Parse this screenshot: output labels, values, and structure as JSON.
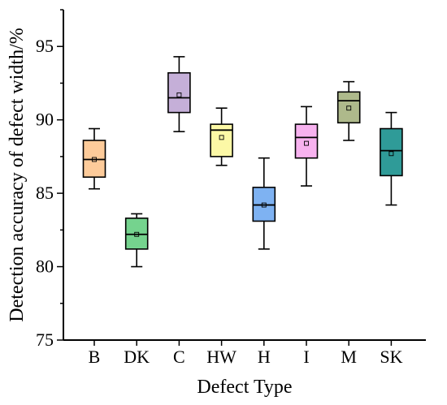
{
  "chart_data": {
    "type": "box",
    "title": "",
    "xlabel": "Defect Type",
    "ylabel": "Detection accuracy of defect width/%",
    "ylim": [
      75,
      97.5
    ],
    "yticks": [
      75,
      80,
      85,
      90,
      95
    ],
    "grid": false,
    "legend": "none",
    "categories": [
      "B",
      "DK",
      "C",
      "HW",
      "H",
      "I",
      "M",
      "SK"
    ],
    "boxes": [
      {
        "category": "B",
        "whisker_low": 85.3,
        "q1": 86.1,
        "median": 87.3,
        "q3": 88.6,
        "whisker_high": 89.4,
        "mean": 87.3,
        "color": "#FDCB9A"
      },
      {
        "category": "DK",
        "whisker_low": 80.0,
        "q1": 81.2,
        "median": 82.2,
        "q3": 83.3,
        "whisker_high": 83.6,
        "mean": 82.2,
        "color": "#75D38E"
      },
      {
        "category": "C",
        "whisker_low": 89.2,
        "q1": 90.5,
        "median": 91.5,
        "q3": 93.2,
        "whisker_high": 94.3,
        "mean": 91.7,
        "color": "#C5AFD8"
      },
      {
        "category": "HW",
        "whisker_low": 86.9,
        "q1": 87.5,
        "median": 89.3,
        "q3": 89.7,
        "whisker_high": 90.8,
        "mean": 88.8,
        "color": "#FCF8A6"
      },
      {
        "category": "H",
        "whisker_low": 81.2,
        "q1": 83.1,
        "median": 84.2,
        "q3": 85.4,
        "whisker_high": 87.4,
        "mean": 84.2,
        "color": "#7EB2F2"
      },
      {
        "category": "I",
        "whisker_low": 85.5,
        "q1": 87.4,
        "median": 88.8,
        "q3": 89.7,
        "whisker_high": 90.9,
        "mean": 88.4,
        "color": "#F7B2EF"
      },
      {
        "category": "M",
        "whisker_low": 88.6,
        "q1": 89.8,
        "median": 91.3,
        "q3": 91.9,
        "whisker_high": 92.6,
        "mean": 90.8,
        "color": "#AEB98B"
      },
      {
        "category": "SK",
        "whisker_low": 84.2,
        "q1": 86.2,
        "median": 87.9,
        "q3": 89.4,
        "whisker_high": 90.5,
        "mean": 87.7,
        "color": "#2F9B98"
      }
    ]
  }
}
